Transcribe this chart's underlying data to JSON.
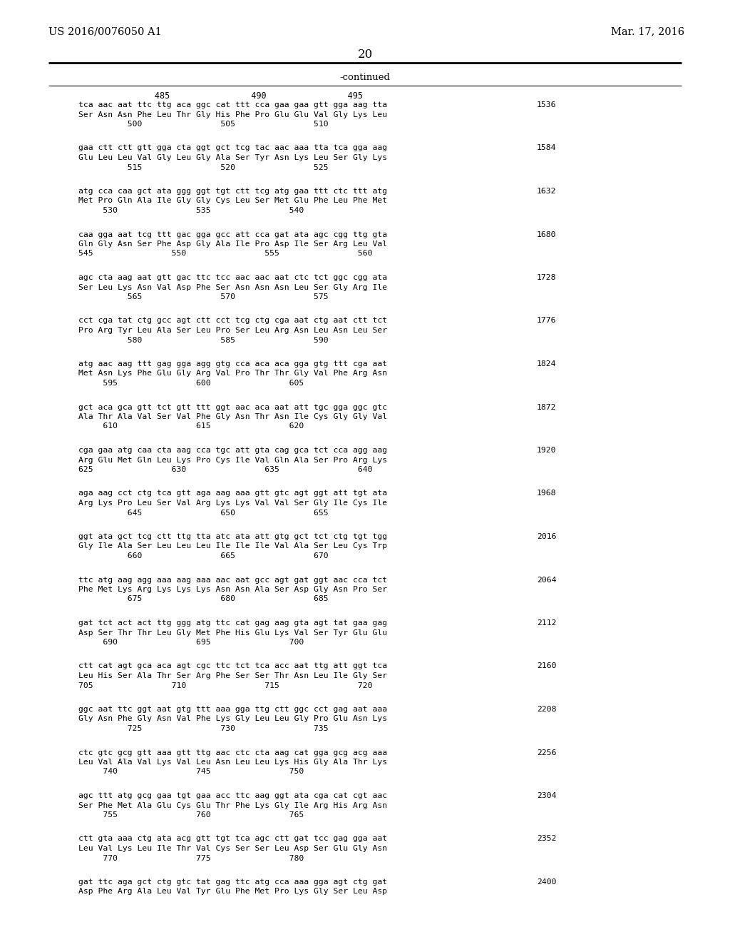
{
  "header_left": "US 2016/0076050 A1",
  "header_right": "Mar. 17, 2016",
  "page_number": "20",
  "continued_label": "-continued",
  "background_color": "#ffffff",
  "text_color": "#000000",
  "ruler_line": "               485                490                495",
  "blocks": [
    {
      "seq_line": "tca aac aat ttc ttg aca ggc cat ttt cca gaa gaa gtt gga aag tta",
      "aa_line": "Ser Asn Asn Phe Leu Thr Gly His Phe Pro Glu Glu Val Gly Lys Leu",
      "num_line": "          500                505                510",
      "right_num": "1536"
    },
    {
      "seq_line": "gaa ctt ctt gtt gga cta ggt gct tcg tac aac aaa tta tca gga aag",
      "aa_line": "Glu Leu Leu Val Gly Leu Gly Ala Ser Tyr Asn Lys Leu Ser Gly Lys",
      "num_line": "          515                520                525",
      "right_num": "1584"
    },
    {
      "seq_line": "atg cca caa gct ata ggg ggt tgt ctt tcg atg gaa ttt ctc ttt atg",
      "aa_line": "Met Pro Gln Ala Ile Gly Gly Cys Leu Ser Met Glu Phe Leu Phe Met",
      "num_line": "     530                535                540",
      "right_num": "1632"
    },
    {
      "seq_line": "caa gga aat tcg ttt gac gga gcc att cca gat ata agc cgg ttg gta",
      "aa_line": "Gln Gly Asn Ser Phe Asp Gly Ala Ile Pro Asp Ile Ser Arg Leu Val",
      "num_line": "545                550                555                560",
      "right_num": "1680"
    },
    {
      "seq_line": "agc cta aag aat gtt gac ttc tcc aac aac aat ctc tct ggc cgg ata",
      "aa_line": "Ser Leu Lys Asn Val Asp Phe Ser Asn Asn Asn Leu Ser Gly Arg Ile",
      "num_line": "          565                570                575",
      "right_num": "1728"
    },
    {
      "seq_line": "cct cga tat ctg gcc agt ctt cct tcg ctg cga aat ctg aat ctt tct",
      "aa_line": "Pro Arg Tyr Leu Ala Ser Leu Pro Ser Leu Arg Asn Leu Asn Leu Ser",
      "num_line": "          580                585                590",
      "right_num": "1776"
    },
    {
      "seq_line": "atg aac aag ttt gag gga agg gtg cca aca aca gga gtg ttt cga aat",
      "aa_line": "Met Asn Lys Phe Glu Gly Arg Val Pro Thr Thr Gly Val Phe Arg Asn",
      "num_line": "     595                600                605",
      "right_num": "1824"
    },
    {
      "seq_line": "gct aca gca gtt tct gtt ttt ggt aac aca aat att tgc gga ggc gtc",
      "aa_line": "Ala Thr Ala Val Ser Val Phe Gly Asn Thr Asn Ile Cys Gly Gly Val",
      "num_line": "     610                615                620",
      "right_num": "1872"
    },
    {
      "seq_line": "cga gaa atg caa cta aag cca tgc att gta cag gca tct cca agg aag",
      "aa_line": "Arg Glu Met Gln Leu Lys Pro Cys Ile Val Gln Ala Ser Pro Arg Lys",
      "num_line": "625                630                635                640",
      "right_num": "1920"
    },
    {
      "seq_line": "aga aag cct ctg tca gtt aga aag aaa gtt gtc agt ggt att tgt ata",
      "aa_line": "Arg Lys Pro Leu Ser Val Arg Lys Lys Val Val Ser Gly Ile Cys Ile",
      "num_line": "          645                650                655",
      "right_num": "1968"
    },
    {
      "seq_line": "ggt ata gct tcg ctt ttg tta atc ata att gtg gct tct ctg tgt tgg",
      "aa_line": "Gly Ile Ala Ser Leu Leu Leu Ile Ile Ile Val Ala Ser Leu Cys Trp",
      "num_line": "          660                665                670",
      "right_num": "2016"
    },
    {
      "seq_line": "ttc atg aag agg aaa aag aaa aac aat gcc agt gat ggt aac cca tct",
      "aa_line": "Phe Met Lys Arg Lys Lys Lys Asn Asn Ala Ser Asp Gly Asn Pro Ser",
      "num_line": "          675                680                685",
      "right_num": "2064"
    },
    {
      "seq_line": "gat tct act act ttg ggg atg ttc cat gag aag gta agt tat gaa gag",
      "aa_line": "Asp Ser Thr Thr Leu Gly Met Phe His Glu Lys Val Ser Tyr Glu Glu",
      "num_line": "     690                695                700",
      "right_num": "2112"
    },
    {
      "seq_line": "ctt cat agt gca aca agt cgc ttc tct tca acc aat ttg att ggt tca",
      "aa_line": "Leu His Ser Ala Thr Ser Arg Phe Ser Ser Thr Asn Leu Ile Gly Ser",
      "num_line": "705                710                715                720",
      "right_num": "2160"
    },
    {
      "seq_line": "ggc aat ttc ggt aat gtg ttt aaa gga ttg ctt ggc cct gag aat aaa",
      "aa_line": "Gly Asn Phe Gly Asn Val Phe Lys Gly Leu Leu Gly Pro Glu Asn Lys",
      "num_line": "          725                730                735",
      "right_num": "2208"
    },
    {
      "seq_line": "ctc gtc gcg gtt aaa gtt ttg aac ctc cta aag cat gga gcg acg aaa",
      "aa_line": "Leu Val Ala Val Lys Val Leu Asn Leu Leu Lys His Gly Ala Thr Lys",
      "num_line": "     740                745                750",
      "right_num": "2256"
    },
    {
      "seq_line": "agc ttt atg gcg gaa tgt gaa acc ttc aag ggt ata cga cat cgt aac",
      "aa_line": "Ser Phe Met Ala Glu Cys Glu Thr Phe Lys Gly Ile Arg His Arg Asn",
      "num_line": "     755                760                765",
      "right_num": "2304"
    },
    {
      "seq_line": "ctt gta aaa ctg ata acg gtt tgt tca agc ctt gat tcc gag gga aat",
      "aa_line": "Leu Val Lys Leu Ile Thr Val Cys Ser Ser Leu Asp Ser Glu Gly Asn",
      "num_line": "     770                775                780",
      "right_num": "2352"
    },
    {
      "seq_line": "gat ttc aga gct ctg gtc tat gag ttc atg cca aaa gga agt ctg gat",
      "aa_line": "Asp Phe Arg Ala Leu Val Tyr Glu Phe Met Pro Lys Gly Ser Leu Asp",
      "num_line": "",
      "right_num": "2400"
    }
  ]
}
